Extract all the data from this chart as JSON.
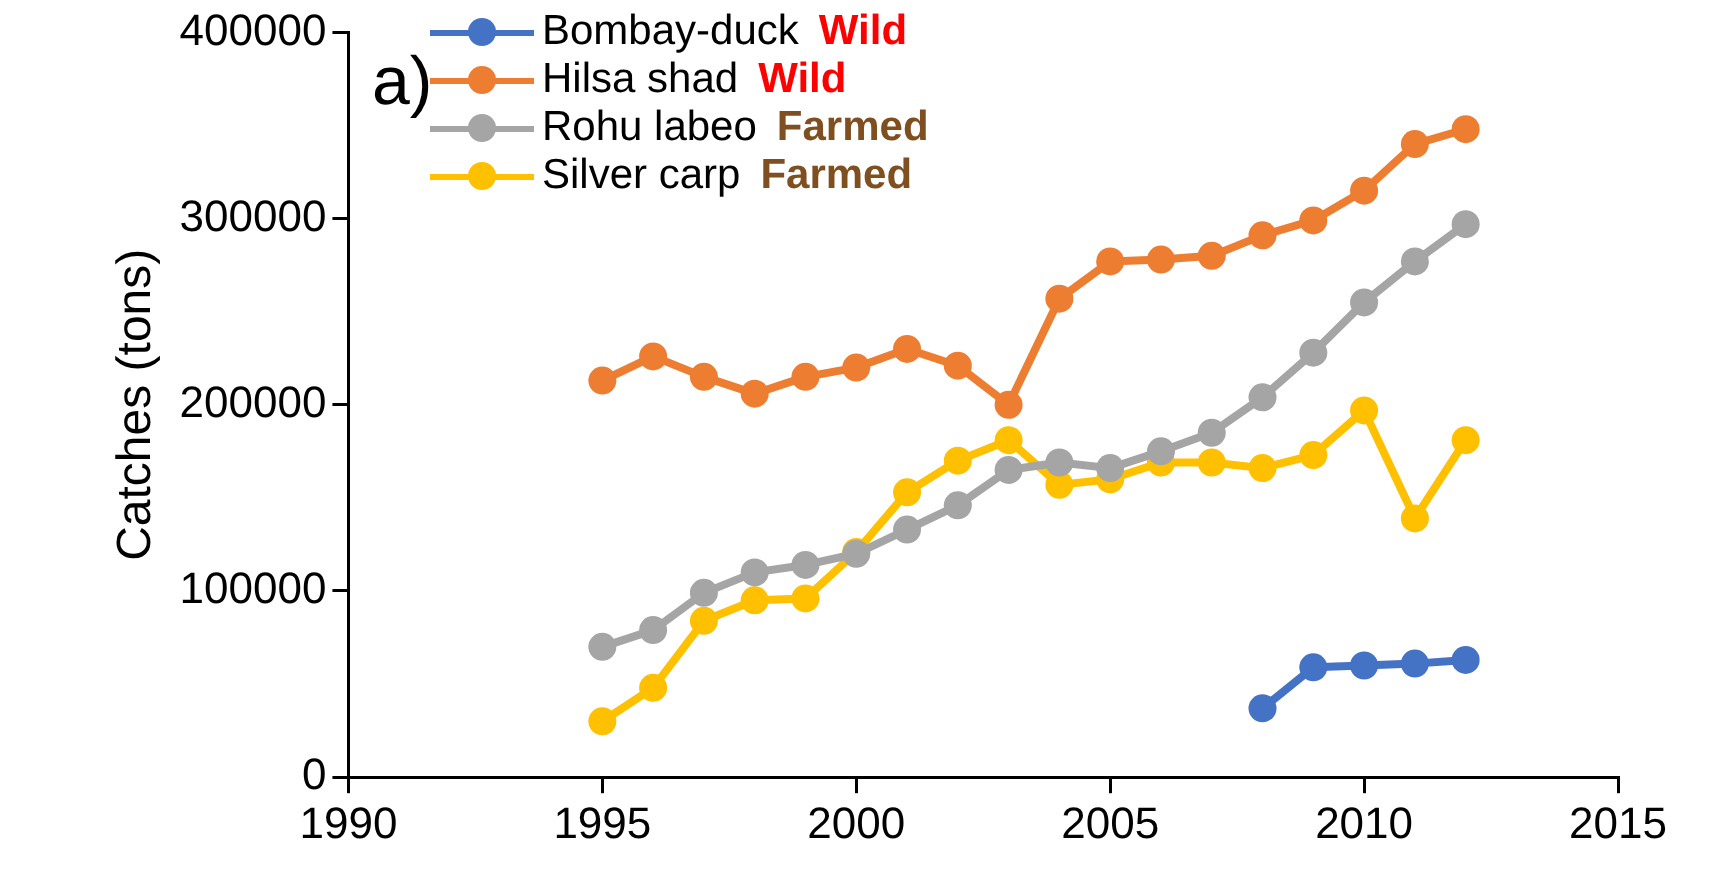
{
  "chart_data": {
    "type": "line",
    "title": "a)",
    "ylabel": "Catches (tons)",
    "xlim": [
      1990,
      2015
    ],
    "xticks": [
      1990,
      1995,
      2000,
      2005,
      2010,
      2015
    ],
    "ylim": [
      0,
      400000
    ],
    "yticks": [
      0,
      100000,
      200000,
      300000,
      400000
    ],
    "grid": false,
    "legend": "top",
    "marker": "circle",
    "line_style": "solid",
    "annotations": [
      "Wild",
      "Wild",
      "Farmed",
      "Farmed"
    ],
    "series": [
      {
        "name": "Bombay-duck",
        "color": "#4472c4",
        "x": [
          2008,
          2009,
          2010,
          2011,
          2012
        ],
        "values": [
          37000,
          59000,
          60000,
          61000,
          63000
        ]
      },
      {
        "name": "Hilsa shad",
        "color": "#ed7d31",
        "x": [
          1995,
          1996,
          1997,
          1998,
          1999,
          2000,
          2001,
          2002,
          2003,
          2004,
          2005,
          2006,
          2007,
          2008,
          2009,
          2010,
          2011,
          2012
        ],
        "values": [
          213000,
          226000,
          215000,
          206000,
          215000,
          220000,
          230000,
          221000,
          200000,
          257000,
          277000,
          278000,
          280000,
          291000,
          299000,
          315000,
          340000,
          348000
        ]
      },
      {
        "name": "Rohu labeo",
        "color": "#a5a5a5",
        "x": [
          1995,
          1996,
          1997,
          1998,
          1999,
          2000,
          2001,
          2002,
          2003,
          2004,
          2005,
          2006,
          2007,
          2008,
          2009,
          2010,
          2011,
          2012
        ],
        "values": [
          70000,
          79000,
          99000,
          110000,
          114000,
          120000,
          133000,
          146000,
          165000,
          169000,
          166000,
          175000,
          185000,
          204000,
          228000,
          255000,
          277000,
          297000
        ]
      },
      {
        "name": "Silver carp",
        "color": "#ffc000",
        "x": [
          1995,
          1996,
          1997,
          1998,
          1999,
          2000,
          2001,
          2002,
          2003,
          2004,
          2005,
          2006,
          2007,
          2008,
          2009,
          2010,
          2011,
          2012
        ],
        "values": [
          30000,
          48000,
          84000,
          95000,
          96000,
          121000,
          153000,
          170000,
          181000,
          157000,
          160000,
          169000,
          169000,
          166000,
          173000,
          197000,
          139000,
          181000
        ]
      }
    ]
  }
}
